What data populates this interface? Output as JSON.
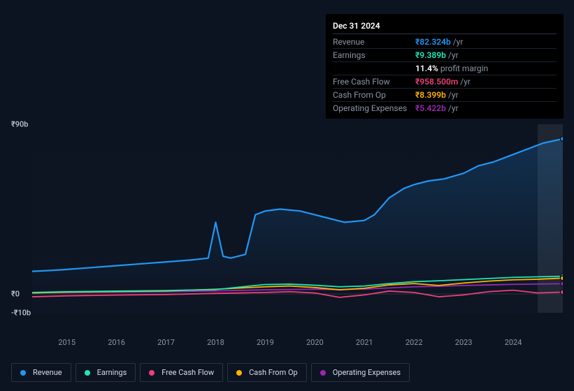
{
  "tooltip": {
    "date": "Dec 31 2024",
    "rows": [
      {
        "label": "Revenue",
        "value": "₹82.324b",
        "unit": "/yr",
        "color": "#2196f3"
      },
      {
        "label": "Earnings",
        "value": "₹9.389b",
        "unit": "/yr",
        "color": "#1de9b6"
      },
      {
        "label": "",
        "value": "11.4%",
        "unit": "profit margin",
        "color": "#ffffff"
      },
      {
        "label": "Free Cash Flow",
        "value": "₹958.500m",
        "unit": "/yr",
        "color": "#ec407a"
      },
      {
        "label": "Cash From Op",
        "value": "₹8.399b",
        "unit": "/yr",
        "color": "#ffb300"
      },
      {
        "label": "Operating Expenses",
        "value": "₹5.422b",
        "unit": "/yr",
        "color": "#9c27b0"
      }
    ]
  },
  "chart": {
    "type": "line",
    "background_color": "#0d1421",
    "grid_color": "#2a3344",
    "ylim": [
      -10,
      90
    ],
    "yticks": [
      {
        "v": 90,
        "label": "₹90b"
      },
      {
        "v": 0,
        "label": "₹0"
      },
      {
        "v": -10,
        "label": "-₹10b"
      }
    ],
    "xlim": [
      2014.3,
      2025.0
    ],
    "xticks": [
      2015,
      2016,
      2017,
      2018,
      2019,
      2020,
      2021,
      2022,
      2023,
      2024
    ],
    "cursor_x": 2025.0,
    "series": [
      {
        "id": "revenue",
        "label": "Revenue",
        "color": "#2196f3",
        "line_width": 2.2,
        "points": [
          [
            2014.3,
            12
          ],
          [
            2014.7,
            12.5
          ],
          [
            2015,
            13
          ],
          [
            2015.5,
            14
          ],
          [
            2016,
            15
          ],
          [
            2016.5,
            16
          ],
          [
            2017,
            17
          ],
          [
            2017.5,
            18
          ],
          [
            2017.85,
            19
          ],
          [
            2018.0,
            38
          ],
          [
            2018.15,
            20
          ],
          [
            2018.3,
            19
          ],
          [
            2018.6,
            21
          ],
          [
            2018.8,
            42
          ],
          [
            2019,
            44
          ],
          [
            2019.3,
            45
          ],
          [
            2019.7,
            44
          ],
          [
            2020,
            42
          ],
          [
            2020.3,
            40
          ],
          [
            2020.6,
            38
          ],
          [
            2021,
            39
          ],
          [
            2021.2,
            42
          ],
          [
            2021.5,
            51
          ],
          [
            2021.8,
            56
          ],
          [
            2022,
            58
          ],
          [
            2022.3,
            60
          ],
          [
            2022.6,
            61
          ],
          [
            2023,
            64
          ],
          [
            2023.3,
            68
          ],
          [
            2023.6,
            70
          ],
          [
            2024,
            74
          ],
          [
            2024.3,
            77
          ],
          [
            2024.6,
            80
          ],
          [
            2025,
            82.3
          ]
        ]
      },
      {
        "id": "earnings",
        "label": "Earnings",
        "color": "#1de9b6",
        "line_width": 1.8,
        "points": [
          [
            2014.3,
            0.8
          ],
          [
            2015,
            1.2
          ],
          [
            2016,
            1.5
          ],
          [
            2017,
            1.8
          ],
          [
            2018,
            2.3
          ],
          [
            2018.8,
            4.5
          ],
          [
            2019,
            5
          ],
          [
            2019.5,
            5.2
          ],
          [
            2020,
            4.6
          ],
          [
            2020.5,
            3.8
          ],
          [
            2021,
            4.2
          ],
          [
            2021.5,
            5.5
          ],
          [
            2022,
            6.5
          ],
          [
            2022.5,
            7
          ],
          [
            2023,
            7.6
          ],
          [
            2023.5,
            8.2
          ],
          [
            2024,
            8.8
          ],
          [
            2025,
            9.39
          ]
        ]
      },
      {
        "id": "fcf",
        "label": "Free Cash Flow",
        "color": "#ec407a",
        "line_width": 1.8,
        "points": [
          [
            2014.3,
            -1.5
          ],
          [
            2015,
            -1
          ],
          [
            2016,
            -0.6
          ],
          [
            2017,
            -0.3
          ],
          [
            2018,
            0.3
          ],
          [
            2019,
            0.8
          ],
          [
            2019.5,
            1.2
          ],
          [
            2020,
            0.5
          ],
          [
            2020.5,
            -1.8
          ],
          [
            2021,
            -0.5
          ],
          [
            2021.5,
            1.5
          ],
          [
            2022,
            0.8
          ],
          [
            2022.5,
            -1.5
          ],
          [
            2023,
            -0.5
          ],
          [
            2023.5,
            1.2
          ],
          [
            2024,
            2
          ],
          [
            2024.5,
            0.5
          ],
          [
            2025,
            0.96
          ]
        ]
      },
      {
        "id": "cfo",
        "label": "Cash From Op",
        "color": "#ffb300",
        "line_width": 1.8,
        "points": [
          [
            2014.3,
            0.5
          ],
          [
            2015,
            1
          ],
          [
            2016,
            1.3
          ],
          [
            2017,
            1.6
          ],
          [
            2018,
            2.5
          ],
          [
            2019,
            3.8
          ],
          [
            2019.5,
            4.2
          ],
          [
            2020,
            3.4
          ],
          [
            2020.5,
            2.2
          ],
          [
            2021,
            3
          ],
          [
            2021.5,
            4.8
          ],
          [
            2022,
            5.5
          ],
          [
            2022.5,
            4.5
          ],
          [
            2023,
            5.8
          ],
          [
            2023.5,
            6.8
          ],
          [
            2024,
            7.5
          ],
          [
            2024.5,
            7.8
          ],
          [
            2025,
            8.4
          ]
        ]
      },
      {
        "id": "opex",
        "label": "Operating Expenses",
        "color": "#9c27b0",
        "line_width": 1.8,
        "points": [
          [
            2014.3,
            0.6
          ],
          [
            2015,
            0.8
          ],
          [
            2016,
            1
          ],
          [
            2017,
            1.2
          ],
          [
            2018,
            1.6
          ],
          [
            2019,
            2.2
          ],
          [
            2020,
            2.5
          ],
          [
            2020.5,
            2.3
          ],
          [
            2021,
            2.6
          ],
          [
            2021.5,
            3.2
          ],
          [
            2022,
            3.8
          ],
          [
            2022.5,
            4.1
          ],
          [
            2023,
            4.5
          ],
          [
            2023.5,
            4.8
          ],
          [
            2024,
            5.1
          ],
          [
            2025,
            5.42
          ]
        ]
      }
    ]
  },
  "legend": {
    "border_color": "#2a3344",
    "text_color": "#d6dce8",
    "items": [
      {
        "id": "revenue",
        "label": "Revenue",
        "color": "#2196f3"
      },
      {
        "id": "earnings",
        "label": "Earnings",
        "color": "#1de9b6"
      },
      {
        "id": "fcf",
        "label": "Free Cash Flow",
        "color": "#ec407a"
      },
      {
        "id": "cfo",
        "label": "Cash From Op",
        "color": "#ffb300"
      },
      {
        "id": "opex",
        "label": "Operating Expenses",
        "color": "#9c27b0"
      }
    ]
  }
}
